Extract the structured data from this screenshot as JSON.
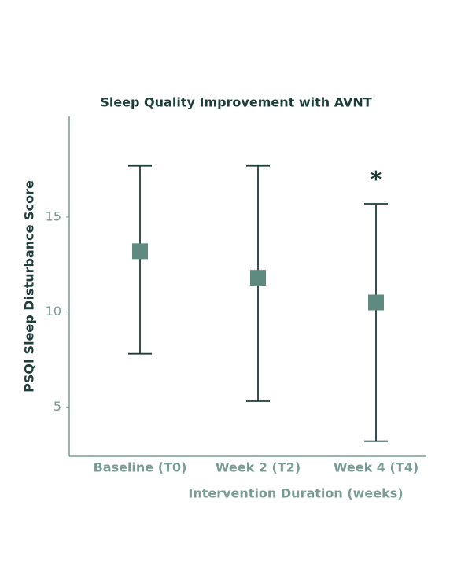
{
  "chart_data": {
    "type": "errorbar",
    "title": "Sleep Quality Improvement with AVNT",
    "x_label": "Intervention Duration (weeks)",
    "y_label": "PSQI Sleep Disturbance Score",
    "categories": [
      "Baseline (T0)",
      "Week 2 (T2)",
      "Week 4 (T4)"
    ],
    "values": [
      13.2,
      11.8,
      10.5
    ],
    "errors_low": [
      5.4,
      6.5,
      7.3
    ],
    "errors_high": [
      4.5,
      5.9,
      5.2
    ],
    "annotations": [
      {
        "category": 2,
        "text": "*"
      }
    ],
    "marker_color": "#5f8a80",
    "error_color": "#1f3d3a",
    "ylim": [
      2.4,
      20.3
    ],
    "yticks": [
      5,
      10,
      15
    ]
  }
}
